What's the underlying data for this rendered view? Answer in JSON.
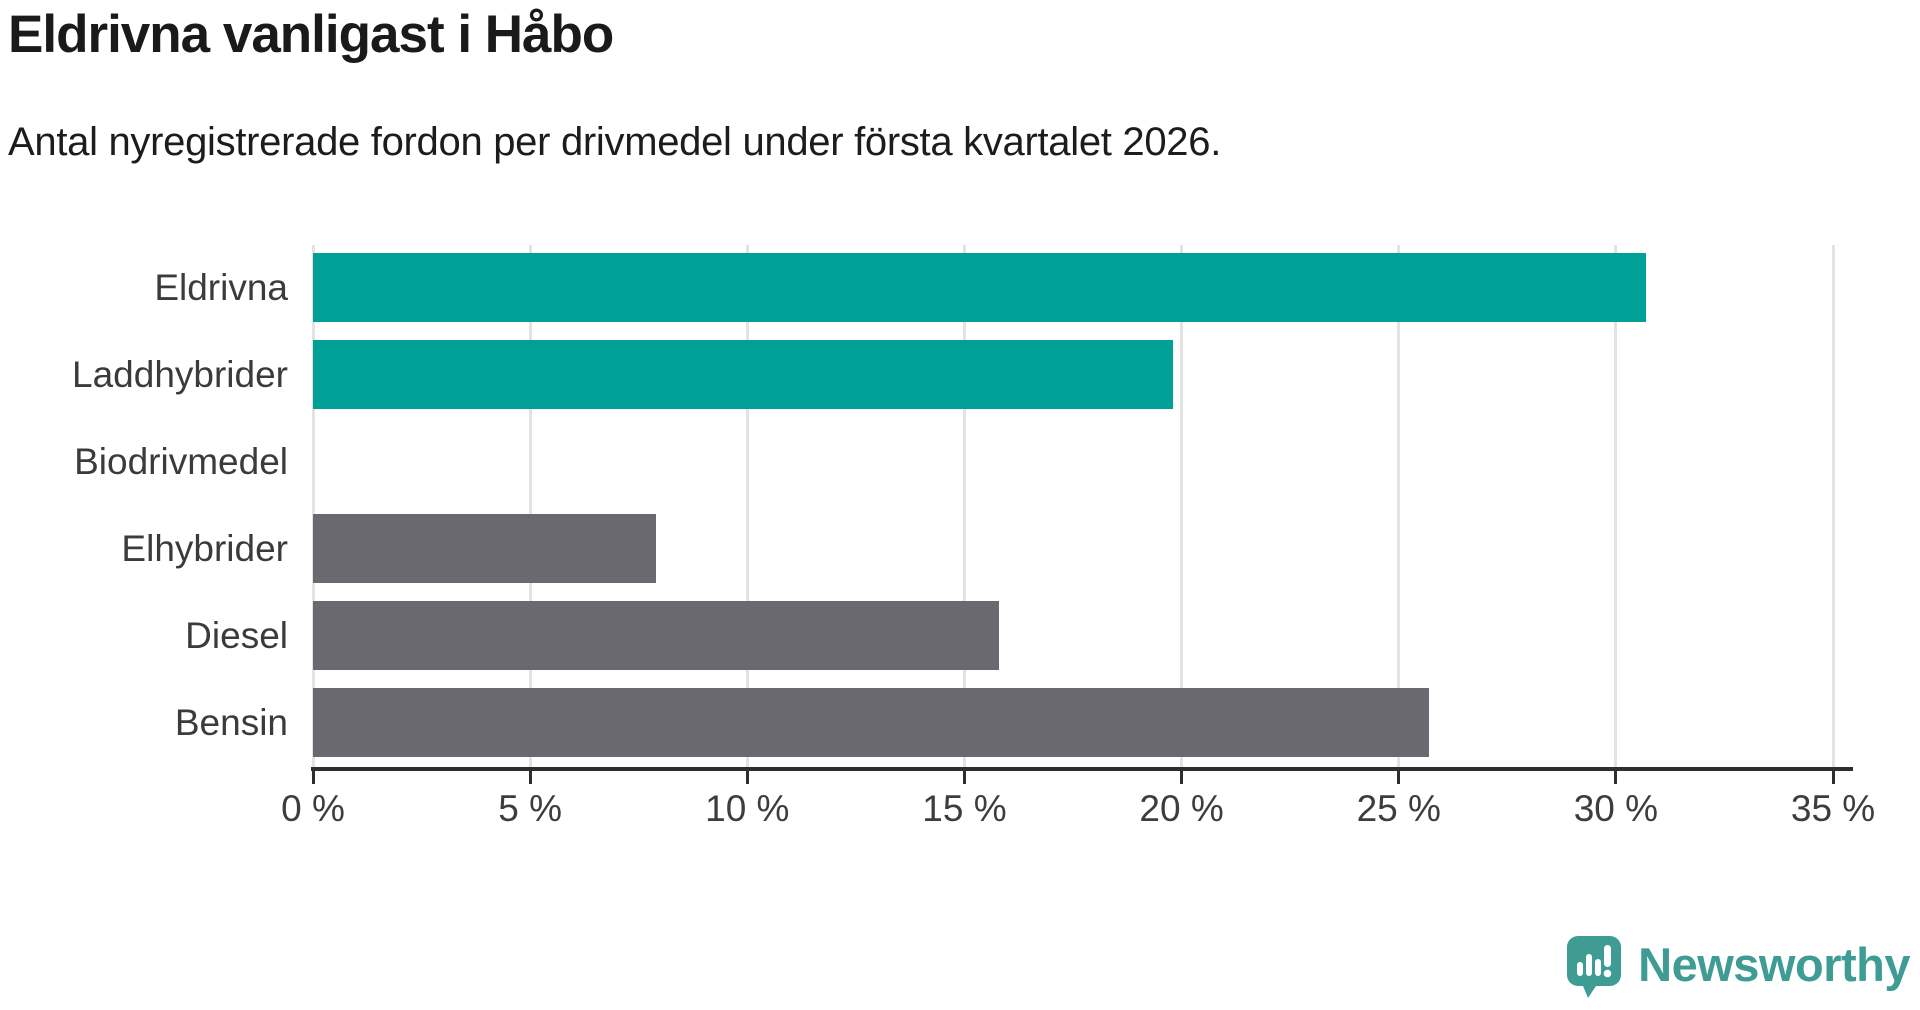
{
  "chart_data": {
    "type": "bar",
    "orientation": "horizontal",
    "title": "Eldrivna vanligast i Håbo",
    "subtitle": "Antal nyregistrerade fordon per drivmedel under första kvartalet 2026.",
    "categories": [
      "Eldrivna",
      "Laddhybrider",
      "Biodrivmedel",
      "Elhybrider",
      "Diesel",
      "Bensin"
    ],
    "values": [
      30.7,
      19.8,
      0,
      7.9,
      15.8,
      25.7
    ],
    "unit": "%",
    "bar_colors": [
      "#00a096",
      "#00a096",
      "#00a096",
      "#6a6970",
      "#6a6970",
      "#6a6970"
    ],
    "highlight_color": "#00a096",
    "default_color": "#6a6970",
    "x_tick_values": [
      0,
      5,
      10,
      15,
      20,
      25,
      30,
      35
    ],
    "x_tick_labels": [
      "0 %",
      "5 %",
      "10 %",
      "15 %",
      "20 %",
      "25 %",
      "30 %",
      "35 %"
    ],
    "xlim": [
      0,
      35.5
    ],
    "grid": true,
    "legend": "none",
    "gridline_color": "#e3e3e3",
    "axis_color": "#2e2e2e"
  },
  "branding": {
    "logo_text": "Newsworthy",
    "logo_color": "#3e9c95",
    "logo_icon": "speech-bubble-bar-chart-exclamation"
  }
}
